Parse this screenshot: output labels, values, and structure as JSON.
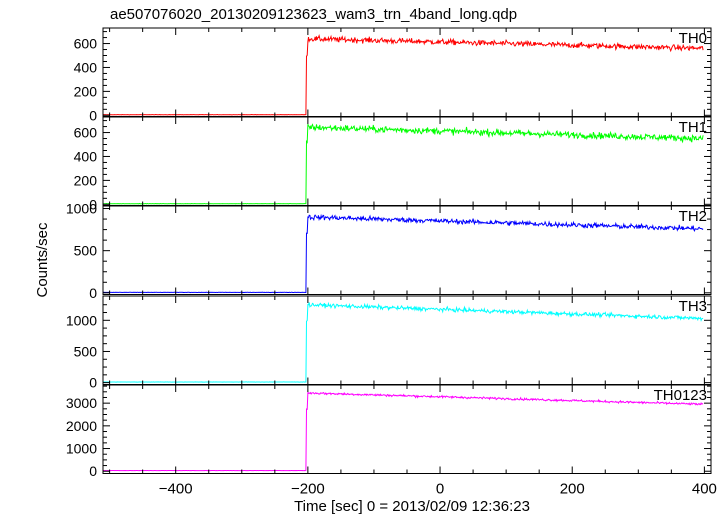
{
  "figure": {
    "title": "ae507076020_20130209123623_wam3_trn_4band_long.qdp",
    "ylabel": "Counts/sec",
    "xlabel": "Time [sec] 0 = 2013/02/09 12:36:23"
  },
  "chart_data": {
    "type": "line",
    "title": "ae507076020_20130209123623_wam3_trn_4band_long.qdp",
    "xlabel": "Time [sec] 0 = 2013/02/09 12:36:23",
    "ylabel": "Counts/sec",
    "xlim": [
      -510,
      410
    ],
    "x_ticks": [
      -400,
      -200,
      0,
      200,
      400
    ],
    "x_tick_labels": [
      "−400",
      "−200",
      "0",
      "200",
      "400"
    ],
    "grid": false,
    "onset_time": -202,
    "panels": [
      {
        "name": "TH0",
        "color": "#ff0000",
        "ylim": [
          -10,
          730
        ],
        "y_ticks": [
          0,
          200,
          400,
          600
        ],
        "background": 5,
        "peak": 640,
        "end_level": 560,
        "noise": 22
      },
      {
        "name": "TH1",
        "color": "#00ff00",
        "ylim": [
          -10,
          730
        ],
        "y_ticks": [
          0,
          200,
          400,
          600
        ],
        "background": 5,
        "peak": 645,
        "end_level": 550,
        "noise": 26
      },
      {
        "name": "TH2",
        "color": "#0000ff",
        "ylim": [
          -20,
          1030
        ],
        "y_ticks": [
          0,
          500,
          1000
        ],
        "background": 5,
        "peak": 900,
        "end_level": 760,
        "noise": 28
      },
      {
        "name": "TH3",
        "color": "#00ffff",
        "ylim": [
          -30,
          1390
        ],
        "y_ticks": [
          0,
          500,
          1000
        ],
        "background": 10,
        "peak": 1250,
        "end_level": 1030,
        "noise": 30
      },
      {
        "name": "TH0123",
        "color": "#ff00ff",
        "ylim": [
          -100,
          3800
        ],
        "y_ticks": [
          0,
          1000,
          2000,
          3000
        ],
        "background": 30,
        "peak": 3450,
        "end_level": 2950,
        "noise": 45
      }
    ]
  }
}
